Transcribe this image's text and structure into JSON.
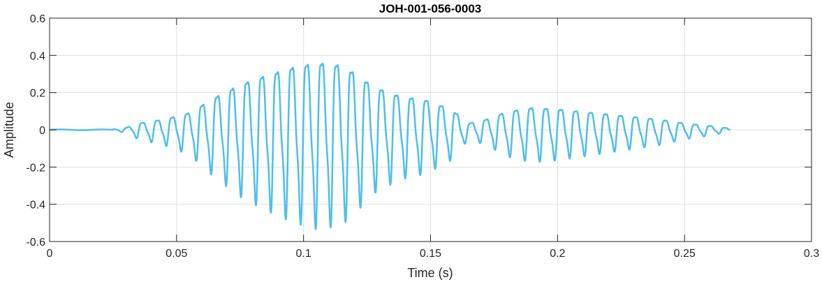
{
  "chart_data": {
    "type": "line",
    "title": "JOH-001-056-0003",
    "xlabel": "Time (s)",
    "ylabel": "Amplitude",
    "xlim": [
      0,
      0.3
    ],
    "ylim": [
      -0.6,
      0.6
    ],
    "grid": true,
    "x_ticks": [
      0,
      0.05,
      0.1,
      0.15,
      0.2,
      0.25,
      0.3
    ],
    "x_tick_labels": [
      "0",
      "0.05",
      "0.1",
      "0.15",
      "0.2",
      "0.25",
      "0.3"
    ],
    "y_ticks": [
      0.6,
      0.4,
      0.2,
      0,
      -0.2,
      -0.4,
      -0.6
    ],
    "y_tick_labels": [
      "0.6",
      "0.4",
      "0.2",
      "0",
      "-0.2",
      "-0.4",
      "-0.6"
    ],
    "series_color": "#4DBEEE",
    "x_end": 0.268,
    "envelope": [
      [
        0,
        0.002
      ],
      [
        0.025,
        0.004
      ],
      [
        0.03,
        0.015
      ],
      [
        0.035,
        0.05
      ],
      [
        0.045,
        0.08
      ],
      [
        0.055,
        0.13
      ],
      [
        0.065,
        0.25
      ],
      [
        0.075,
        0.35
      ],
      [
        0.085,
        0.42
      ],
      [
        0.095,
        0.48
      ],
      [
        0.105,
        0.52
      ],
      [
        0.115,
        0.5
      ],
      [
        0.12,
        0.44
      ],
      [
        0.128,
        0.33
      ],
      [
        0.138,
        0.26
      ],
      [
        0.148,
        0.23
      ],
      [
        0.158,
        0.16
      ],
      [
        0.165,
        0.05
      ],
      [
        0.172,
        0.08
      ],
      [
        0.18,
        0.14
      ],
      [
        0.19,
        0.17
      ],
      [
        0.2,
        0.16
      ],
      [
        0.21,
        0.14
      ],
      [
        0.22,
        0.12
      ],
      [
        0.23,
        0.1
      ],
      [
        0.24,
        0.08
      ],
      [
        0.25,
        0.05
      ],
      [
        0.26,
        0.03
      ],
      [
        0.268,
        0.01
      ]
    ],
    "frequency_hz": 170
  }
}
